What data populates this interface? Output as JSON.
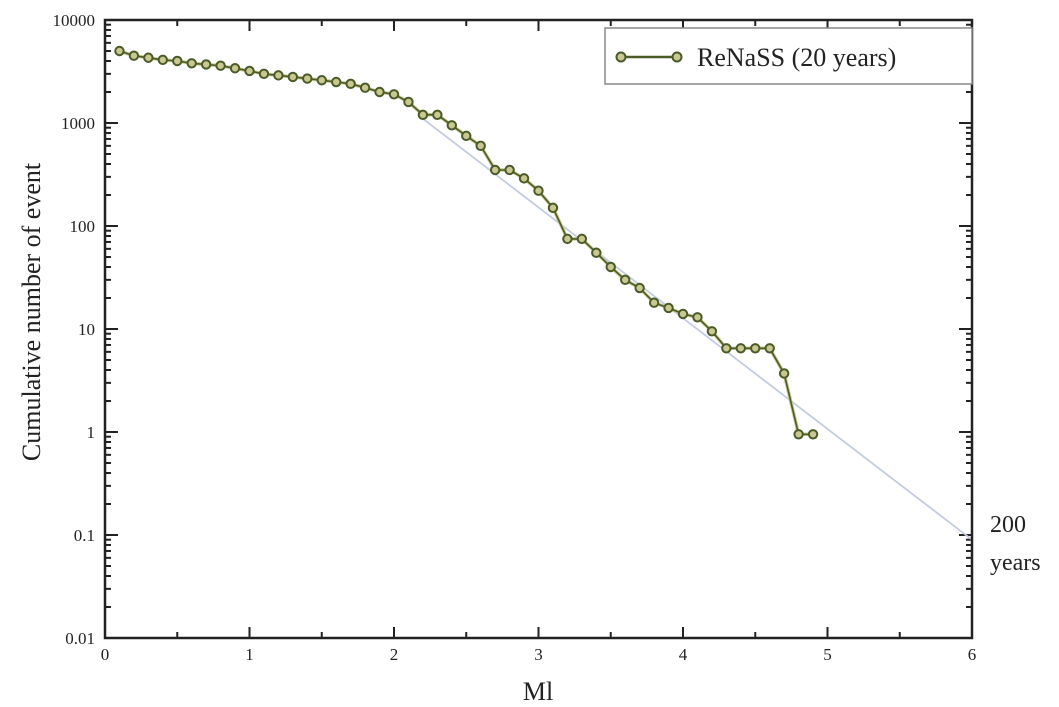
{
  "chart_data": {
    "type": "line",
    "title": "",
    "xlabel": "Ml",
    "ylabel": "Cumulative number of event",
    "xlim": [
      0,
      6
    ],
    "ylim": [
      0.01,
      10000
    ],
    "yscale": "log",
    "x_ticks": [
      "0",
      "1",
      "2",
      "3",
      "4",
      "5",
      "6"
    ],
    "y_ticks": [
      "0.01",
      "0.1",
      "1",
      "10",
      "100",
      "1000",
      "10000"
    ],
    "y_tick_values": [
      0.01,
      0.1,
      1,
      10,
      100,
      1000,
      10000
    ],
    "legend_position": "top-right",
    "series": [
      {
        "name": "ReNaSS (20 years)",
        "color": "#4a5a28",
        "fill": "#c8c890",
        "x": [
          0.1,
          0.2,
          0.3,
          0.4,
          0.5,
          0.6,
          0.7,
          0.8,
          0.9,
          1.0,
          1.1,
          1.2,
          1.3,
          1.4,
          1.5,
          1.6,
          1.7,
          1.8,
          1.9,
          2.0,
          2.1,
          2.2,
          2.3,
          2.4,
          2.5,
          2.6,
          2.7,
          2.8,
          2.9,
          3.0,
          3.1,
          3.2,
          3.3,
          3.4,
          3.5,
          3.6,
          3.7,
          3.8,
          3.9,
          4.0,
          4.1,
          4.2,
          4.3,
          4.4,
          4.5,
          4.6,
          4.7,
          4.8,
          4.9
        ],
        "y": [
          5000,
          4500,
          4300,
          4100,
          4000,
          3800,
          3700,
          3600,
          3400,
          3200,
          3000,
          2900,
          2800,
          2700,
          2600,
          2500,
          2400,
          2200,
          2000,
          1900,
          1600,
          1200,
          1200,
          950,
          750,
          600,
          350,
          350,
          290,
          220,
          150,
          75,
          75,
          55,
          40,
          30,
          25,
          18,
          16,
          14,
          13,
          9.5,
          6.5,
          6.5,
          6.5,
          6.5,
          3.7,
          0.95,
          0.95
        ]
      }
    ],
    "trend_line": {
      "x": [
        2.2,
        6.0
      ],
      "y": [
        1100,
        0.09
      ],
      "color": "#c4cce0"
    },
    "annotation": {
      "line1": "200",
      "line2": "years"
    }
  }
}
